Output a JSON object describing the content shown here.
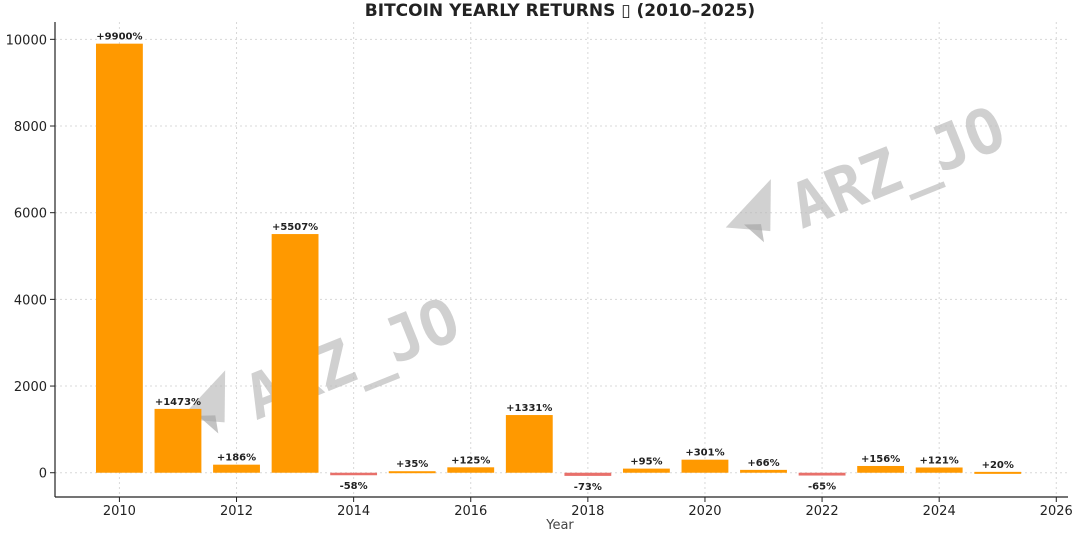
{
  "chart_data": {
    "type": "bar",
    "title": "BITCOIN YEARLY RETURNS ▯ (2010–2025)",
    "xlabel": "Year",
    "ylabel": "",
    "xlim": [
      2008.9,
      2026.2
    ],
    "ylim": [
      -560,
      10400
    ],
    "xticks": [
      2010,
      2012,
      2014,
      2016,
      2018,
      2020,
      2022,
      2024,
      2026
    ],
    "yticks": [
      0,
      2000,
      4000,
      6000,
      8000,
      10000
    ],
    "grid": true,
    "bar_width": 0.8,
    "positive_color": "#ff9900",
    "negative_color": "#e8706a",
    "bars": [
      {
        "year": 2010,
        "value": 9900,
        "label": "+9900%"
      },
      {
        "year": 2011,
        "value": 1473,
        "label": "+1473%"
      },
      {
        "year": 2012,
        "value": 186,
        "label": "+186%"
      },
      {
        "year": 2013,
        "value": 5507,
        "label": "+5507%"
      },
      {
        "year": 2014,
        "value": -58,
        "label": "-58%"
      },
      {
        "year": 2015,
        "value": 35,
        "label": "+35%"
      },
      {
        "year": 2016,
        "value": 125,
        "label": "+125%"
      },
      {
        "year": 2017,
        "value": 1331,
        "label": "+1331%"
      },
      {
        "year": 2018,
        "value": -73,
        "label": "-73%"
      },
      {
        "year": 2019,
        "value": 95,
        "label": "+95%"
      },
      {
        "year": 2020,
        "value": 301,
        "label": "+301%"
      },
      {
        "year": 2021,
        "value": 66,
        "label": "+66%"
      },
      {
        "year": 2022,
        "value": -65,
        "label": "-65%"
      },
      {
        "year": 2023,
        "value": 156,
        "label": "+156%"
      },
      {
        "year": 2024,
        "value": 121,
        "label": "+121%"
      },
      {
        "year": 2025,
        "value": 20,
        "label": "+20%"
      }
    ]
  },
  "watermark": {
    "text": "ARZ_JO",
    "icon": "telegram-plane-icon",
    "color": "#b8b8b8"
  }
}
